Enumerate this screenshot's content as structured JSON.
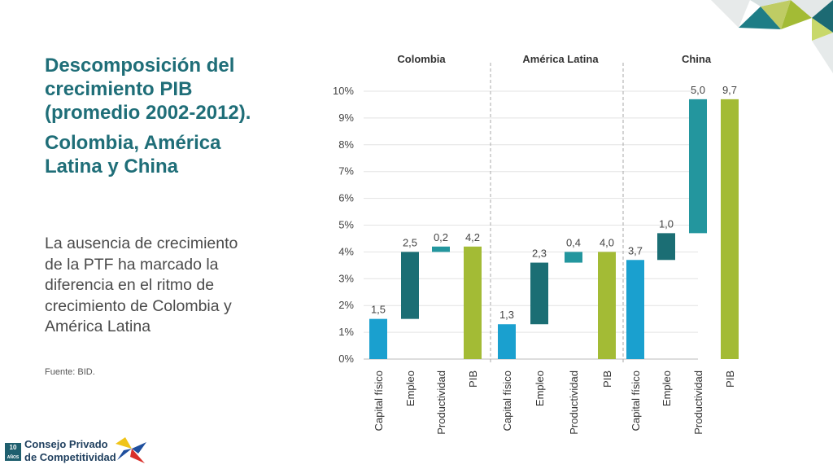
{
  "slide": {
    "title_line1": "Descomposición del crecimiento PIB (promedio 2002-2012).",
    "title_line2": "Colombia, América Latina y China",
    "description": "La ausencia de crecimiento de la PTF ha marcado la diferencia en el ritmo de crecimiento de Colombia y América Latina",
    "source": "Fuente:  BID."
  },
  "logo": {
    "badge_top": "10",
    "badge_bottom": "AÑOS",
    "line1": "Consejo Privado",
    "line2": "de Competitividad"
  },
  "colors": {
    "capital": "#1aa0cf",
    "empleo": "#1b6e74",
    "productividad": "#23969e",
    "pib": "#a3bb35",
    "title": "#1f6e78"
  },
  "chart_data": {
    "type": "bar",
    "subtype": "waterfall",
    "title": "",
    "xlabel": "",
    "ylabel": "",
    "ylim": [
      0,
      10
    ],
    "yticks": [
      "0%",
      "1%",
      "2%",
      "3%",
      "4%",
      "5%",
      "6%",
      "7%",
      "8%",
      "9%",
      "10%"
    ],
    "grid": true,
    "groups": [
      "Colombia",
      "América Latina",
      "China"
    ],
    "categories": [
      "Capital físico",
      "Empleo",
      "Productividad",
      "PIB",
      "Capital físico",
      "Empleo",
      "Productividad",
      "PIB",
      "Capital físico",
      "Empleo",
      "Productividad",
      "PIB"
    ],
    "series": [
      {
        "group": "Colombia",
        "bars": [
          {
            "category": "Capital físico",
            "start": 0,
            "end": 1.5,
            "label": "1,5",
            "kind": "capital"
          },
          {
            "category": "Empleo",
            "start": 1.5,
            "end": 4.0,
            "label": "2,5",
            "kind": "empleo"
          },
          {
            "category": "Productividad",
            "start": 4.0,
            "end": 4.2,
            "label": "0,2",
            "kind": "productividad"
          },
          {
            "category": "PIB",
            "start": 0,
            "end": 4.2,
            "label": "4,2",
            "kind": "pib"
          }
        ]
      },
      {
        "group": "América Latina",
        "bars": [
          {
            "category": "Capital físico",
            "start": 0,
            "end": 1.3,
            "label": "1,3",
            "kind": "capital"
          },
          {
            "category": "Empleo",
            "start": 1.3,
            "end": 3.6,
            "label": "2,3",
            "kind": "empleo"
          },
          {
            "category": "Productividad",
            "start": 3.6,
            "end": 4.0,
            "label": "0,4",
            "kind": "productividad"
          },
          {
            "category": "PIB",
            "start": 0,
            "end": 4.0,
            "label": "4,0",
            "kind": "pib"
          }
        ]
      },
      {
        "group": "China",
        "bars": [
          {
            "category": "Capital físico",
            "start": 0,
            "end": 3.7,
            "label": "3,7",
            "kind": "capital"
          },
          {
            "category": "Empleo",
            "start": 3.7,
            "end": 4.7,
            "label": "1,0",
            "kind": "empleo"
          },
          {
            "category": "Productividad",
            "start": 4.7,
            "end": 9.7,
            "label": "5,0",
            "kind": "productividad"
          },
          {
            "category": "PIB",
            "start": 0,
            "end": 9.7,
            "label": "9,7",
            "kind": "pib"
          }
        ]
      }
    ]
  }
}
